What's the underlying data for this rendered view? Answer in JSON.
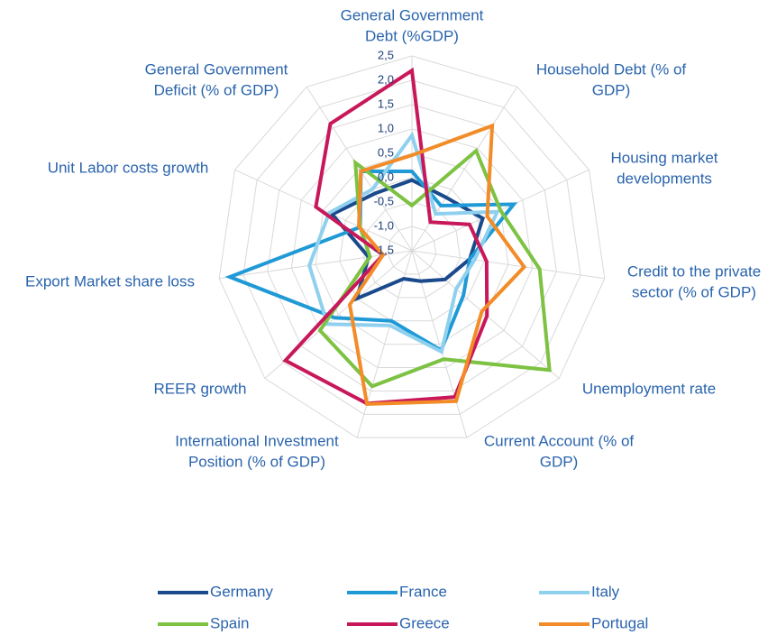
{
  "chart_data": {
    "type": "radar",
    "categories": [
      [
        "General Government",
        "Debt (%GDP)"
      ],
      [
        "Household Debt (% of",
        "GDP)"
      ],
      [
        "Housing market",
        "developments"
      ],
      [
        "Credit to the private",
        "sector (% of GDP)"
      ],
      [
        "Unemployment rate"
      ],
      [
        "Current Account (% of",
        "GDP)"
      ],
      [
        "International Investment",
        "Position (% of GDP)"
      ],
      [
        "REER growth"
      ],
      [
        "Export Market share loss"
      ],
      [
        "Unit Labor costs growth"
      ],
      [
        "General Government",
        "Deficit (% of GDP)"
      ]
    ],
    "ylim": [
      -1.5,
      2.5
    ],
    "yticks": [
      {
        "value": 2.5,
        "label": "2,5"
      },
      {
        "value": 2.0,
        "label": "2,0"
      },
      {
        "value": 1.5,
        "label": "1,5"
      },
      {
        "value": 1.0,
        "label": "1,0"
      },
      {
        "value": 0.5,
        "label": "0,5"
      },
      {
        "value": 0.0,
        "label": "0,0"
      },
      {
        "value": -0.5,
        "label": "-0,5"
      },
      {
        "value": -1.0,
        "label": "-1,0"
      },
      {
        "value": -1.5,
        "label": "-1,5"
      }
    ],
    "grid": true,
    "series": [
      {
        "name": "Germany",
        "color": "#1a4a8c",
        "values": [
          -0.05,
          -0.2,
          0.1,
          -0.3,
          -0.6,
          -0.85,
          -0.9,
          0.0,
          -0.6,
          0.3,
          -0.1
        ]
      },
      {
        "name": "France",
        "color": "#1f9ad6",
        "values": [
          0.13,
          -0.4,
          0.8,
          -0.3,
          -0.1,
          0.63,
          0.0,
          0.6,
          2.28,
          -0.33,
          0.44
        ]
      },
      {
        "name": "Italy",
        "color": "#8fd0ef",
        "values": [
          0.87,
          -0.6,
          0.43,
          -0.2,
          -0.3,
          0.66,
          0.1,
          0.8,
          0.63,
          0.37,
          0.0
        ]
      },
      {
        "name": "Spain",
        "color": "#7dc242",
        "values": [
          -0.57,
          0.94,
          0.5,
          1.15,
          2.24,
          0.82,
          1.4,
          1.0,
          -0.63,
          -0.33,
          0.65
        ]
      },
      {
        "name": "Greece",
        "color": "#c8185a",
        "values": [
          2.2,
          -0.8,
          -0.2,
          0.05,
          0.54,
          1.63,
          1.77,
          1.94,
          -0.9,
          0.67,
          1.6
        ]
      },
      {
        "name": "Portugal",
        "color": "#f28c28",
        "values": [
          0.46,
          1.55,
          0.2,
          0.83,
          0.4,
          1.72,
          1.78,
          0.19,
          -0.9,
          -0.3,
          0.44
        ]
      }
    ]
  }
}
